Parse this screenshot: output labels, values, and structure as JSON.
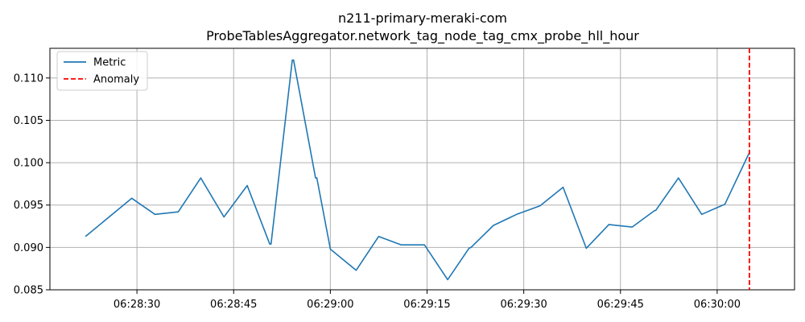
{
  "chart_data": {
    "type": "line",
    "title_line1": "n211-primary-meraki-com",
    "title_line2": "ProbeTablesAggregator.network_tag_node_tag_cmx_probe_hll_hour",
    "xlabel": "",
    "ylabel": "",
    "grid": true,
    "legend_position": "top-left",
    "xlim": [
      "06:28:16.5",
      "06:30:12"
    ],
    "ylim": [
      0.085,
      0.1135
    ],
    "x_ticks": [
      "06:28:30",
      "06:28:45",
      "06:29:00",
      "06:29:15",
      "06:29:30",
      "06:29:45",
      "06:30:00"
    ],
    "y_ticks": [
      "0.085",
      "0.090",
      "0.095",
      "0.100",
      "0.105",
      "0.110"
    ],
    "series": [
      {
        "name": "Metric",
        "color": "#1f77b4",
        "style": "solid",
        "x": [
          "06:28:22.0",
          "06:28:22.2",
          "06:28:29.2",
          "06:28:32.8",
          "06:28:36.4",
          "06:28:39.9",
          "06:28:43.5",
          "06:28:47.1",
          "06:28:50.6",
          "06:28:50.8",
          "06:28:54.1",
          "06:28:54.3",
          "06:28:57.7",
          "06:28:57.9",
          "06:29:00.0",
          "06:29:04.0",
          "06:29:07.5",
          "06:29:11.0",
          "06:29:14.6",
          "06:29:18.2",
          "06:29:21.5",
          "06:29:21.8",
          "06:29:25.3",
          "06:29:28.9",
          "06:29:32.5",
          "06:29:36.1",
          "06:29:39.7",
          "06:29:43.2",
          "06:29:46.8",
          "06:29:50.2",
          "06:29:50.5",
          "06:29:54.0",
          "06:29:57.6",
          "06:30:01.2",
          "06:30:05.0"
        ],
        "values": [
          0.0913,
          0.0914,
          0.0958,
          0.0939,
          0.0942,
          0.0982,
          0.0936,
          0.0973,
          0.0904,
          0.0904,
          0.1121,
          0.1121,
          0.0982,
          0.0982,
          0.0898,
          0.0873,
          0.0913,
          0.0903,
          0.0903,
          0.0862,
          0.0899,
          0.09,
          0.0926,
          0.0939,
          0.0949,
          0.0971,
          0.0899,
          0.0927,
          0.0924,
          0.0943,
          0.0944,
          0.0982,
          0.0939,
          0.0951,
          0.1012
        ]
      }
    ],
    "anomalies": [
      {
        "name": "Anomaly",
        "color": "#ff0000",
        "style": "dashed",
        "x": "06:30:05.0"
      }
    ]
  }
}
